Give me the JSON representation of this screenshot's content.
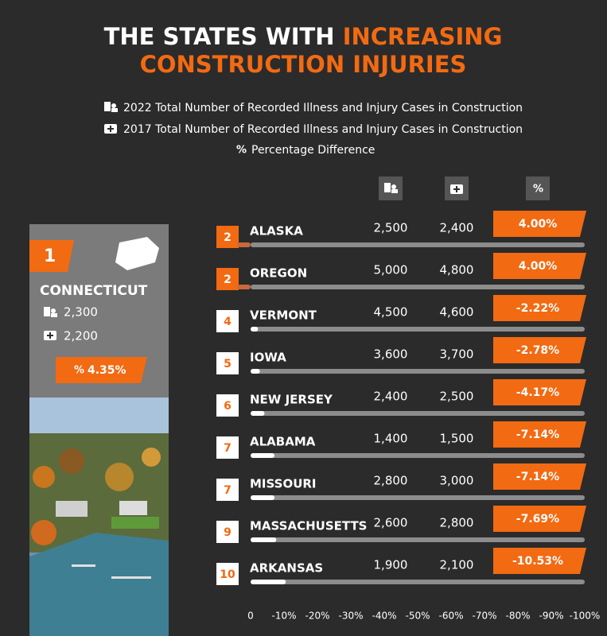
{
  "title": {
    "line1_white": "THE STATES WITH",
    "line1_orange": "INCREASING",
    "line2": "CONSTRUCTION INJURIES"
  },
  "legend": [
    "2022 Total Number of Recorded Illness and Injury Cases in Construction",
    "2017 Total Number of Recorded Illness and Injury Cases in Construction",
    "Percentage Difference"
  ],
  "featured": {
    "rank": "1",
    "state": "CONNECTICUT",
    "cases_2022": "2,300",
    "cases_2017": "2,200",
    "pct_label": "4.35%"
  },
  "rows": [
    {
      "rank": "2",
      "state": "ALASKA",
      "cases_2022": "2,500",
      "cases_2017": "2,400",
      "pct": 4.0,
      "pct_label": "4.00%"
    },
    {
      "rank": "2",
      "state": "OREGON",
      "cases_2022": "5,000",
      "cases_2017": "4,800",
      "pct": 4.0,
      "pct_label": "4.00%"
    },
    {
      "rank": "4",
      "state": "VERMONT",
      "cases_2022": "4,500",
      "cases_2017": "4,600",
      "pct": -2.22,
      "pct_label": "-2.22%"
    },
    {
      "rank": "5",
      "state": "IOWA",
      "cases_2022": "3,600",
      "cases_2017": "3,700",
      "pct": -2.78,
      "pct_label": "-2.78%"
    },
    {
      "rank": "6",
      "state": "NEW JERSEY",
      "cases_2022": "2,400",
      "cases_2017": "2,500",
      "pct": -4.17,
      "pct_label": "-4.17%"
    },
    {
      "rank": "7",
      "state": "ALABAMA",
      "cases_2022": "1,400",
      "cases_2017": "1,500",
      "pct": -7.14,
      "pct_label": "-7.14%"
    },
    {
      "rank": "7",
      "state": "MISSOURI",
      "cases_2022": "2,800",
      "cases_2017": "3,000",
      "pct": -7.14,
      "pct_label": "-7.14%"
    },
    {
      "rank": "9",
      "state": "MASSACHUSETTS",
      "cases_2022": "2,600",
      "cases_2017": "2,800",
      "pct": -7.69,
      "pct_label": "-7.69%"
    },
    {
      "rank": "10",
      "state": "ARKANSAS",
      "cases_2022": "1,900",
      "cases_2017": "2,100",
      "pct": -10.53,
      "pct_label": "-10.53%"
    }
  ],
  "axis": {
    "lim": [
      0,
      -100
    ],
    "ticks": [
      0,
      {
        "value": -10,
        "label": "-10%"
      },
      {
        "value": -20,
        "label": "-20%"
      },
      {
        "value": -30,
        "label": "-30%"
      },
      {
        "value": -40,
        "label": "-40%"
      },
      {
        "value": -50,
        "label": "-50%"
      },
      {
        "value": -60,
        "label": "-60%"
      },
      {
        "value": -70,
        "label": "-70%"
      },
      {
        "value": -80,
        "label": "-80%"
      },
      {
        "value": -90,
        "label": "-90%"
      },
      {
        "value": -100,
        "label": "-100%"
      }
    ]
  }
}
